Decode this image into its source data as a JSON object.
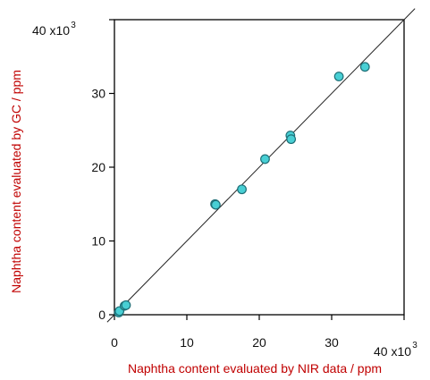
{
  "chart_data": {
    "type": "scatter",
    "title": "",
    "xlabel": "Naphtha content evaluated by NIR data / ppm",
    "ylabel": "Naphtha content evaluated by GC / ppm",
    "xlim": [
      0,
      40000
    ],
    "ylim": [
      0,
      40000
    ],
    "x_ticks": [
      0,
      10000,
      20000,
      30000,
      40000
    ],
    "y_ticks": [
      0,
      10000,
      20000,
      30000,
      40000
    ],
    "x_tick_labels": [
      "0",
      "10",
      "20",
      "30",
      "40 x10"
    ],
    "y_tick_labels": [
      "0",
      "10",
      "20",
      "30",
      "40 x10"
    ],
    "tick_multiplier_exponent": "3",
    "grid": false,
    "legend": "none",
    "reference_line": "y = x",
    "marker_color": "#48cfd4",
    "marker_edge_color": "#1e6f77",
    "line_color": "#222222",
    "series": [
      {
        "points": [
          [
            600,
            300
          ],
          [
            700,
            500
          ],
          [
            1400,
            1200
          ],
          [
            1600,
            1300
          ],
          [
            13900,
            15000
          ],
          [
            14000,
            14900
          ],
          [
            17600,
            17000
          ],
          [
            20800,
            21100
          ],
          [
            24300,
            24300
          ],
          [
            24400,
            23800
          ],
          [
            31000,
            32300
          ],
          [
            34600,
            33600
          ]
        ]
      }
    ]
  }
}
